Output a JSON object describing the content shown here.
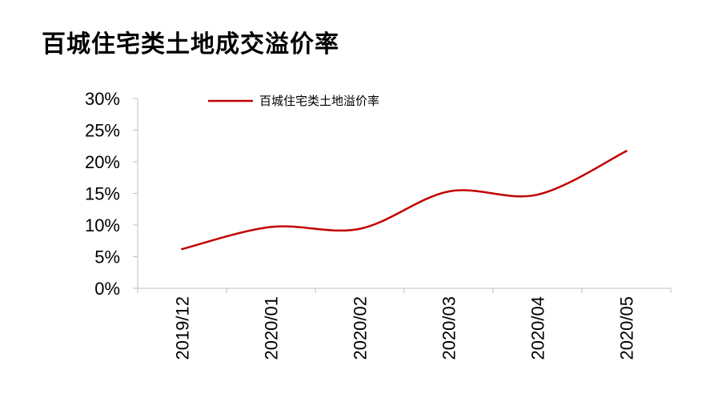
{
  "title": "百城住宅类土地成交溢价率",
  "chart_data": {
    "type": "line",
    "categories": [
      "2019/12",
      "2020/01",
      "2020/02",
      "2020/03",
      "2020/04",
      "2020/05"
    ],
    "series": [
      {
        "name": "百城住宅类土地溢价率",
        "values": [
          6.2,
          9.7,
          9.4,
          15.3,
          14.8,
          21.7
        ],
        "color": "#c00000"
      }
    ],
    "ylim": [
      0,
      30
    ],
    "yticks": [
      0,
      5,
      10,
      15,
      20,
      25,
      30
    ],
    "ytick_labels": [
      "0%",
      "5%",
      "10%",
      "15%",
      "20%",
      "25%",
      "30%"
    ],
    "grid": false,
    "legend_position": "top"
  }
}
